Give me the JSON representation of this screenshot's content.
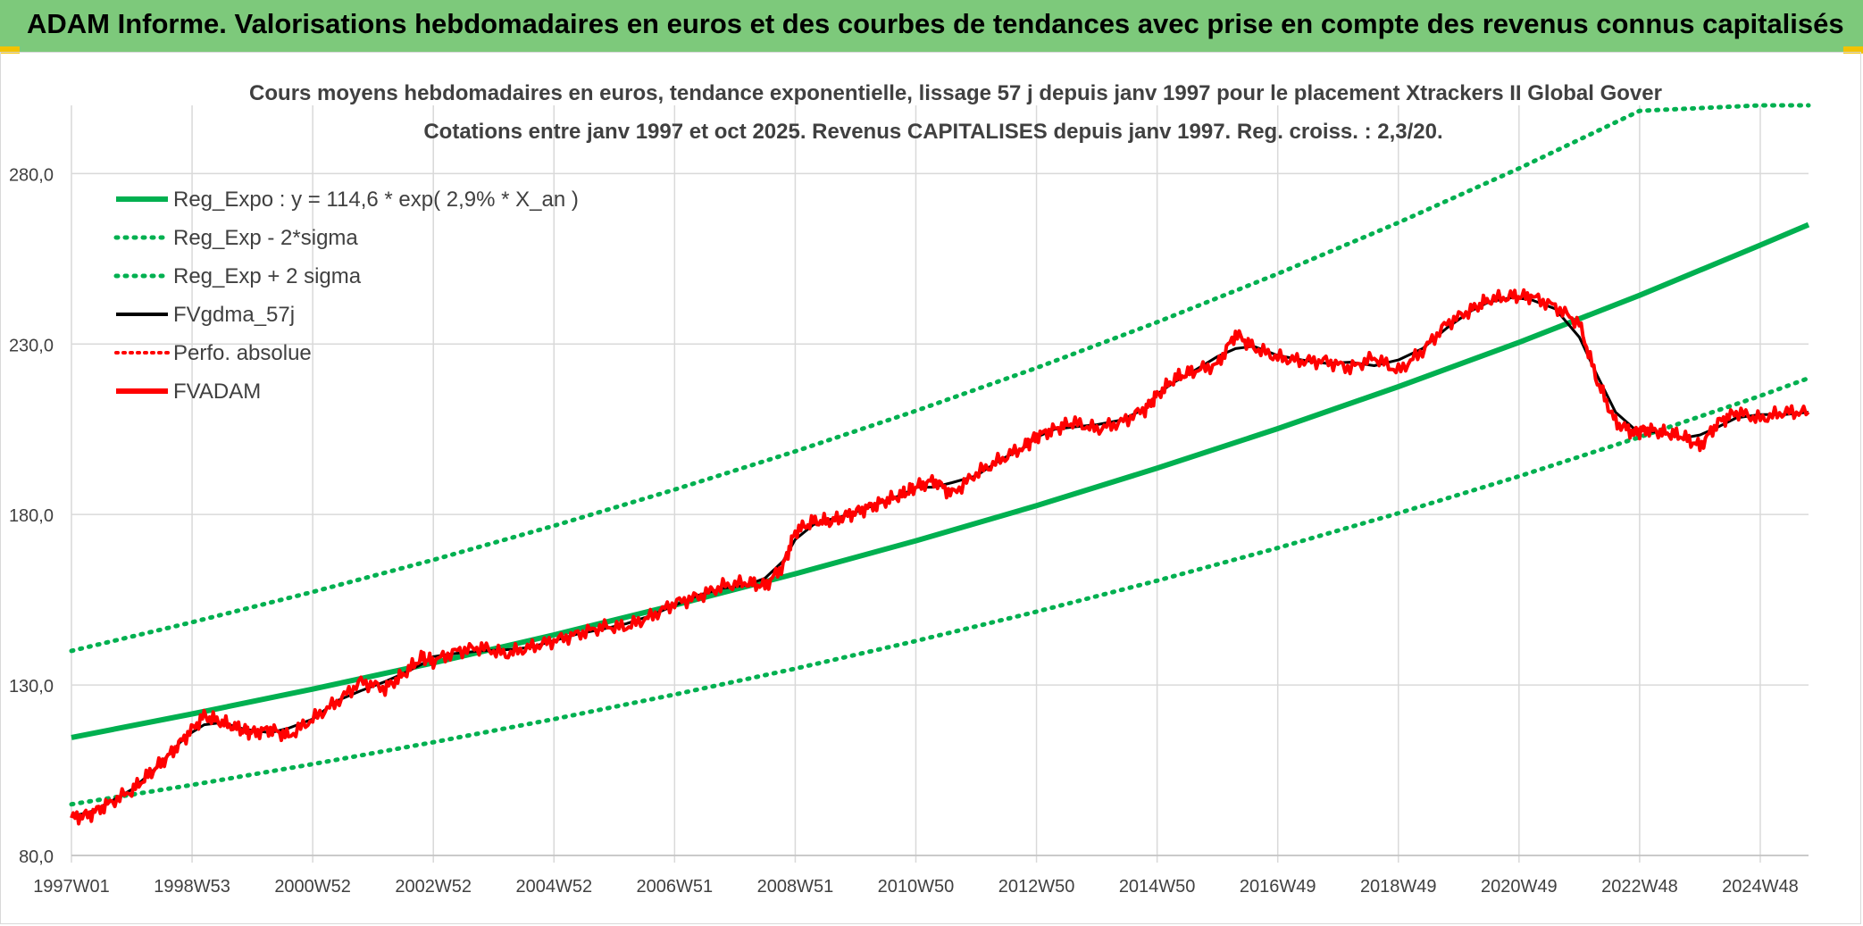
{
  "banner": {
    "title": "ADAM Informe. Valorisations hebdomadaires en euros et des courbes de tendances avec prise en compte des revenus connus capitalisés"
  },
  "colors": {
    "banner_bg": "#7dc97b",
    "trend": "#00b050",
    "smooth": "#000000",
    "price": "#ff0000",
    "grid": "#d9d9d9",
    "title_text": "#404040"
  },
  "chart_data": {
    "type": "line",
    "title": "Cours moyens hebdomadaires en euros, tendance exponentielle, lissage 57 j depuis janv 1997 pour le placement Xtrackers II Global Gover",
    "subtitle": "Cotations entre janv 1997 et oct 2025. Revenus CAPITALISES depuis janv 1997. Reg. croiss. : 2,3/20.",
    "xlabel": "",
    "ylabel": "",
    "xlim": [
      1997.0,
      2025.8
    ],
    "ylim": [
      80,
      300
    ],
    "yticks": [
      80,
      130,
      180,
      230,
      280
    ],
    "ytick_labels": [
      "80,0",
      "130,0",
      "180,0",
      "230,0",
      "280,0"
    ],
    "xticks": [
      {
        "label": "1997W01",
        "x": 1997.0
      },
      {
        "label": "1998W53",
        "x": 1999.0
      },
      {
        "label": "2000W52",
        "x": 2001.0
      },
      {
        "label": "2002W52",
        "x": 2003.0
      },
      {
        "label": "2004W52",
        "x": 2005.0
      },
      {
        "label": "2006W51",
        "x": 2007.0
      },
      {
        "label": "2008W51",
        "x": 2009.0
      },
      {
        "label": "2010W50",
        "x": 2011.0
      },
      {
        "label": "2012W50",
        "x": 2013.0
      },
      {
        "label": "2014W50",
        "x": 2015.0
      },
      {
        "label": "2016W49",
        "x": 2017.0
      },
      {
        "label": "2018W49",
        "x": 2019.0
      },
      {
        "label": "2020W49",
        "x": 2021.0
      },
      {
        "label": "2022W48",
        "x": 2023.0
      },
      {
        "label": "2024W48",
        "x": 2025.0
      }
    ],
    "grid": true,
    "legend_position": "top-left",
    "legend": [
      {
        "name": "Reg_Expo : y = 114,6 * exp( 2,9% *  X_an )",
        "style": "solid-green-thick"
      },
      {
        "name": "Reg_Exp - 2*sigma",
        "style": "dotted-green"
      },
      {
        "name": "Reg_Exp + 2 sigma",
        "style": "dotted-green"
      },
      {
        "name": "FVgdma_57j",
        "style": "solid-black"
      },
      {
        "name": "Perfo. absolue",
        "style": "dotted-red"
      },
      {
        "name": "FVADAM",
        "style": "solid-red-thick"
      }
    ],
    "trend": {
      "a": 114.6,
      "rate": 0.029,
      "start": 1997.0
    },
    "series": [
      {
        "name": "Reg_Expo",
        "x": [
          1997.0,
          1999.0,
          2001.0,
          2003.0,
          2005.0,
          2007.0,
          2009.0,
          2011.0,
          2013.0,
          2015.0,
          2017.0,
          2019.0,
          2021.0,
          2023.0,
          2025.0,
          2025.8
        ],
        "values": [
          114.6,
          121.5,
          128.8,
          136.5,
          144.7,
          153.4,
          162.6,
          172.3,
          182.6,
          193.6,
          205.2,
          217.5,
          230.5,
          244.3,
          259.0,
          265.0
        ]
      },
      {
        "name": "Reg_Exp + 2 sigma",
        "x": [
          1997.0,
          1999.0,
          2001.0,
          2003.0,
          2005.0,
          2007.0,
          2009.0,
          2011.0,
          2013.0,
          2015.0,
          2017.0,
          2019.0,
          2021.0,
          2023.0,
          2025.0,
          2025.8
        ],
        "values": [
          140.0,
          148.4,
          157.3,
          166.7,
          176.7,
          187.3,
          198.5,
          210.4,
          223.0,
          236.4,
          250.6,
          265.6,
          281.5,
          298.4,
          300.0,
          300.0
        ]
      },
      {
        "name": "Reg_Exp - 2*sigma",
        "x": [
          1997.0,
          1999.0,
          2001.0,
          2003.0,
          2005.0,
          2007.0,
          2009.0,
          2011.0,
          2013.0,
          2015.0,
          2017.0,
          2019.0,
          2021.0,
          2023.0,
          2025.0,
          2025.8
        ],
        "values": [
          95.0,
          100.7,
          106.8,
          113.2,
          120.0,
          127.2,
          134.8,
          142.9,
          151.5,
          160.6,
          170.2,
          180.4,
          191.2,
          202.7,
          214.8,
          220.0
        ]
      },
      {
        "name": "FVADAM",
        "x": [
          1997.0,
          1997.3,
          1997.6,
          1998.0,
          1998.3,
          1998.6,
          1998.9,
          1999.2,
          1999.5,
          1999.8,
          2000.0,
          2000.3,
          2000.6,
          2001.0,
          2001.4,
          2001.8,
          2002.2,
          2002.5,
          2002.8,
          2003.0,
          2003.4,
          2003.8,
          2004.2,
          2004.6,
          2005.0,
          2005.4,
          2005.8,
          2006.2,
          2006.6,
          2007.0,
          2007.4,
          2007.8,
          2008.2,
          2008.5,
          2008.8,
          2009.0,
          2009.3,
          2009.6,
          2009.9,
          2010.2,
          2010.5,
          2010.8,
          2011.0,
          2011.3,
          2011.6,
          2012.0,
          2012.4,
          2012.8,
          2013.0,
          2013.3,
          2013.6,
          2014.0,
          2014.4,
          2014.8,
          2015.0,
          2015.3,
          2015.6,
          2016.0,
          2016.3,
          2016.6,
          2017.0,
          2017.4,
          2017.8,
          2018.2,
          2018.6,
          2019.0,
          2019.4,
          2019.8,
          2020.2,
          2020.5,
          2020.9,
          2021.2,
          2021.6,
          2022.0,
          2022.3,
          2022.6,
          2022.9,
          2023.1,
          2023.4,
          2023.7,
          2024.0,
          2024.3,
          2024.6,
          2025.0,
          2025.4,
          2025.8
        ],
        "values": [
          91,
          92,
          95,
          99,
          104,
          109,
          115,
          121,
          119,
          117,
          116,
          117,
          115,
          120,
          125,
          131,
          129,
          133,
          138,
          137,
          140,
          141,
          139,
          141,
          143,
          145,
          147,
          147,
          150,
          154,
          156,
          159,
          160,
          159,
          165,
          175,
          178,
          178,
          180,
          182,
          184,
          186,
          188,
          190,
          186,
          192,
          196,
          200,
          203,
          205,
          207,
          205,
          207,
          211,
          215,
          220,
          222,
          224,
          233,
          229,
          226,
          225,
          225,
          223,
          226,
          222,
          228,
          236,
          240,
          243,
          244,
          244,
          241,
          236,
          219,
          207,
          204,
          205,
          204,
          203,
          200,
          207,
          210,
          208,
          210,
          210
        ]
      }
    ]
  }
}
